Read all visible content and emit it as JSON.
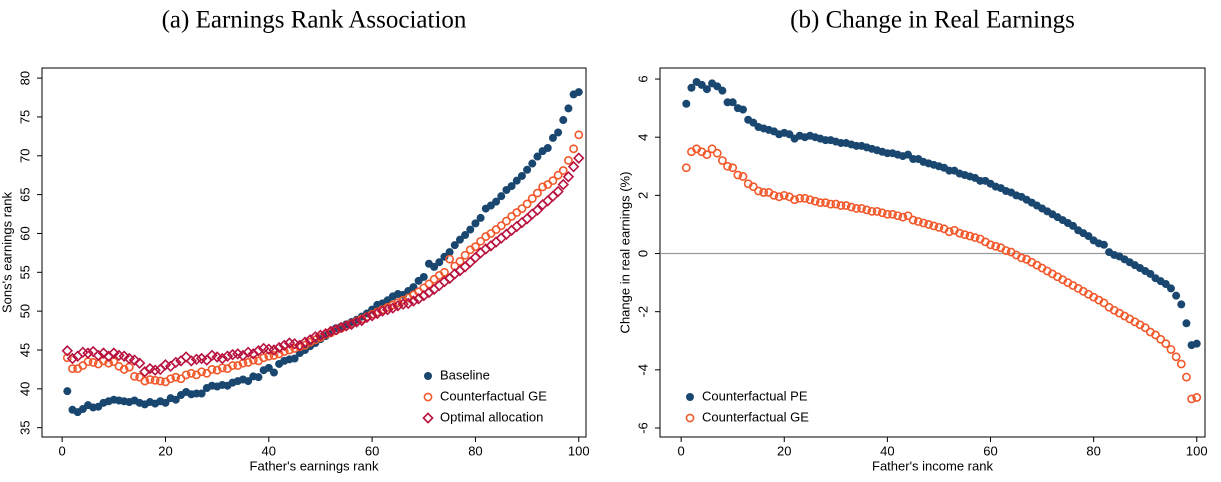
{
  "chart_data": [
    {
      "type": "scatter",
      "title": "(a) Earnings Rank Association",
      "x_label": "Father's earnings rank",
      "y_label": "Sons's earnings rank",
      "xlim": [
        -3.9,
        101.4
      ],
      "ylim": [
        33.8,
        81.3
      ],
      "xticks": [
        0,
        20,
        40,
        60,
        80,
        100
      ],
      "yticks": [
        35,
        40,
        45,
        50,
        55,
        60,
        65,
        70,
        75,
        80
      ],
      "legend": "lower right",
      "x": [
        1,
        2,
        3,
        4,
        5,
        6,
        7,
        8,
        9,
        10,
        11,
        12,
        13,
        14,
        15,
        16,
        17,
        18,
        19,
        20,
        21,
        22,
        23,
        24,
        25,
        26,
        27,
        28,
        29,
        30,
        31,
        32,
        33,
        34,
        35,
        36,
        37,
        38,
        39,
        40,
        41,
        42,
        43,
        44,
        45,
        46,
        47,
        48,
        49,
        50,
        51,
        52,
        53,
        54,
        55,
        56,
        57,
        58,
        59,
        60,
        61,
        62,
        63,
        64,
        65,
        66,
        67,
        68,
        69,
        70,
        71,
        72,
        73,
        74,
        75,
        76,
        77,
        78,
        79,
        80,
        81,
        82,
        83,
        84,
        85,
        86,
        87,
        88,
        89,
        90,
        91,
        92,
        93,
        94,
        95,
        96,
        97,
        98,
        99,
        100
      ],
      "series": [
        {
          "name": "Baseline",
          "color": "#1a476f",
          "marker": "filled-circle",
          "values": [
            39.7,
            37.3,
            37.0,
            37.4,
            37.9,
            37.6,
            37.7,
            38.2,
            38.4,
            38.6,
            38.5,
            38.4,
            38.3,
            38.5,
            38.2,
            38.0,
            38.3,
            38.1,
            38.4,
            38.2,
            38.8,
            38.6,
            39.2,
            39.6,
            39.3,
            39.4,
            39.4,
            40.1,
            40.4,
            40.3,
            40.5,
            40.4,
            40.8,
            41.0,
            41.2,
            41.0,
            41.6,
            41.5,
            42.4,
            42.7,
            42.1,
            43.2,
            43.6,
            43.8,
            43.9,
            44.6,
            45.0,
            45.5,
            45.9,
            46.4,
            46.8,
            47.3,
            47.8,
            48.0,
            48.3,
            48.6,
            48.9,
            49.3,
            49.7,
            50.2,
            50.8,
            51.0,
            51.4,
            51.9,
            52.2,
            52.1,
            52.6,
            53.1,
            53.9,
            54.4,
            56.1,
            55.7,
            56.3,
            57.0,
            57.6,
            58.5,
            59.2,
            59.8,
            60.5,
            61.3,
            62.0,
            63.2,
            63.6,
            64.1,
            64.8,
            65.6,
            66.1,
            66.8,
            67.4,
            68.2,
            69.0,
            69.9,
            70.6,
            71.0,
            72.3,
            73.0,
            74.6,
            76.1,
            77.9,
            78.2
          ]
        },
        {
          "name": "Counterfactual GE",
          "color": "#f2582a",
          "marker": "hollow-circle",
          "values": [
            44.0,
            42.6,
            42.6,
            43.0,
            43.5,
            43.4,
            43.2,
            43.6,
            43.3,
            43.5,
            42.9,
            42.5,
            42.8,
            41.6,
            41.5,
            41.0,
            41.2,
            41.1,
            41.0,
            40.9,
            41.3,
            41.5,
            41.3,
            41.8,
            42.0,
            41.8,
            42.2,
            42.0,
            42.5,
            42.4,
            42.7,
            42.6,
            43.0,
            43.0,
            43.3,
            43.4,
            43.7,
            43.6,
            44.0,
            44.2,
            44.3,
            44.5,
            44.8,
            45.0,
            45.2,
            45.4,
            45.6,
            46.0,
            46.3,
            46.6,
            47.0,
            47.2,
            47.5,
            47.8,
            48.1,
            48.4,
            48.7,
            49.0,
            49.3,
            49.6,
            49.9,
            50.2,
            50.5,
            50.8,
            51.1,
            51.4,
            51.7,
            52.1,
            52.5,
            53.0,
            53.5,
            54.1,
            54.6,
            55.0,
            56.7,
            55.8,
            56.4,
            57.2,
            57.9,
            58.3,
            59.0,
            59.6,
            60.0,
            60.5,
            61.0,
            61.6,
            62.2,
            62.7,
            63.2,
            63.8,
            64.5,
            65.2,
            66.0,
            66.3,
            66.8,
            67.5,
            68.1,
            69.4,
            70.9,
            72.7
          ]
        },
        {
          "name": "Optimal allocation",
          "color": "#b8123f",
          "marker": "hollow-diamond",
          "values": [
            44.9,
            43.9,
            44.2,
            44.7,
            44.6,
            44.8,
            44.3,
            44.6,
            44.2,
            44.6,
            44.3,
            44.2,
            43.9,
            43.7,
            43.3,
            42.2,
            42.6,
            42.4,
            42.5,
            43.1,
            42.9,
            43.4,
            43.6,
            44.1,
            43.6,
            43.8,
            43.9,
            43.7,
            44.3,
            44.1,
            43.9,
            44.2,
            44.4,
            44.5,
            44.3,
            44.7,
            44.5,
            44.9,
            45.2,
            45.1,
            45.0,
            45.3,
            45.6,
            45.9,
            45.8,
            45.6,
            46.0,
            46.3,
            46.7,
            46.9,
            47.1,
            47.4,
            47.6,
            47.9,
            48.1,
            48.3,
            48.6,
            48.8,
            49.2,
            49.4,
            49.7,
            50.0,
            50.2,
            50.4,
            50.7,
            50.9,
            51.0,
            51.3,
            51.6,
            52.0,
            52.4,
            52.8,
            53.3,
            53.8,
            54.2,
            54.8,
            55.2,
            55.7,
            56.3,
            56.9,
            57.5,
            58.0,
            58.4,
            58.9,
            59.4,
            59.9,
            60.4,
            60.9,
            61.4,
            61.9,
            62.5,
            63.0,
            63.7,
            64.2,
            64.8,
            65.4,
            66.3,
            67.3,
            68.6,
            69.7
          ]
        }
      ]
    },
    {
      "type": "scatter",
      "title": "(b) Change in Real Earnings",
      "x_label": "Father's income rank",
      "y_label": "Change in real earnings (%)",
      "xlim": [
        -4.1,
        101.6
      ],
      "ylim": [
        -6.31,
        6.38
      ],
      "xticks": [
        0,
        20,
        40,
        60,
        80,
        100
      ],
      "yticks": [
        -6,
        -4,
        -2,
        0,
        2,
        4,
        6
      ],
      "reference_line": 0,
      "legend": "lower left",
      "x": [
        1,
        2,
        3,
        4,
        5,
        6,
        7,
        8,
        9,
        10,
        11,
        12,
        13,
        14,
        15,
        16,
        17,
        18,
        19,
        20,
        21,
        22,
        23,
        24,
        25,
        26,
        27,
        28,
        29,
        30,
        31,
        32,
        33,
        34,
        35,
        36,
        37,
        38,
        39,
        40,
        41,
        42,
        43,
        44,
        45,
        46,
        47,
        48,
        49,
        50,
        51,
        52,
        53,
        54,
        55,
        56,
        57,
        58,
        59,
        60,
        61,
        62,
        63,
        64,
        65,
        66,
        67,
        68,
        69,
        70,
        71,
        72,
        73,
        74,
        75,
        76,
        77,
        78,
        79,
        80,
        81,
        82,
        83,
        84,
        85,
        86,
        87,
        88,
        89,
        90,
        91,
        92,
        93,
        94,
        95,
        96,
        97,
        98,
        99,
        100
      ],
      "series": [
        {
          "name": "Counterfactual PE",
          "color": "#1a476f",
          "marker": "filled-circle",
          "values": [
            5.15,
            5.7,
            5.9,
            5.8,
            5.65,
            5.85,
            5.75,
            5.6,
            5.2,
            5.2,
            5.0,
            4.95,
            4.6,
            4.5,
            4.35,
            4.3,
            4.25,
            4.2,
            4.1,
            4.15,
            4.1,
            3.95,
            4.05,
            4.0,
            4.05,
            4.0,
            3.95,
            3.9,
            3.9,
            3.85,
            3.8,
            3.8,
            3.75,
            3.7,
            3.7,
            3.65,
            3.6,
            3.55,
            3.5,
            3.45,
            3.45,
            3.4,
            3.35,
            3.4,
            3.25,
            3.25,
            3.15,
            3.1,
            3.05,
            3.0,
            2.95,
            2.85,
            2.85,
            2.75,
            2.7,
            2.65,
            2.6,
            2.5,
            2.5,
            2.4,
            2.3,
            2.25,
            2.15,
            2.1,
            2.0,
            1.95,
            1.85,
            1.75,
            1.65,
            1.55,
            1.45,
            1.35,
            1.25,
            1.15,
            1.05,
            0.95,
            0.8,
            0.7,
            0.6,
            0.45,
            0.35,
            0.3,
            0.05,
            -0.05,
            -0.1,
            -0.2,
            -0.3,
            -0.4,
            -0.5,
            -0.6,
            -0.7,
            -0.85,
            -0.95,
            -1.05,
            -1.2,
            -1.45,
            -1.75,
            -2.4,
            -3.15,
            -3.1
          ]
        },
        {
          "name": "Counterfactual GE",
          "color": "#f2582a",
          "marker": "hollow-circle",
          "values": [
            2.95,
            3.5,
            3.6,
            3.5,
            3.4,
            3.6,
            3.45,
            3.2,
            3.0,
            2.95,
            2.7,
            2.65,
            2.4,
            2.3,
            2.15,
            2.1,
            2.1,
            2.0,
            1.95,
            2.0,
            1.95,
            1.85,
            1.9,
            1.9,
            1.85,
            1.8,
            1.75,
            1.75,
            1.7,
            1.7,
            1.65,
            1.65,
            1.6,
            1.55,
            1.55,
            1.5,
            1.45,
            1.45,
            1.4,
            1.35,
            1.35,
            1.3,
            1.25,
            1.3,
            1.15,
            1.1,
            1.05,
            1.0,
            0.95,
            0.9,
            0.85,
            0.75,
            0.8,
            0.7,
            0.65,
            0.6,
            0.55,
            0.5,
            0.4,
            0.3,
            0.25,
            0.2,
            0.1,
            0.05,
            -0.05,
            -0.15,
            -0.2,
            -0.3,
            -0.4,
            -0.5,
            -0.6,
            -0.7,
            -0.8,
            -0.9,
            -1.0,
            -1.1,
            -1.2,
            -1.3,
            -1.4,
            -1.5,
            -1.6,
            -1.7,
            -1.85,
            -1.95,
            -2.05,
            -2.15,
            -2.25,
            -2.35,
            -2.45,
            -2.55,
            -2.7,
            -2.8,
            -2.95,
            -3.1,
            -3.3,
            -3.55,
            -3.8,
            -4.25,
            -5.0,
            -4.95
          ]
        }
      ]
    }
  ]
}
